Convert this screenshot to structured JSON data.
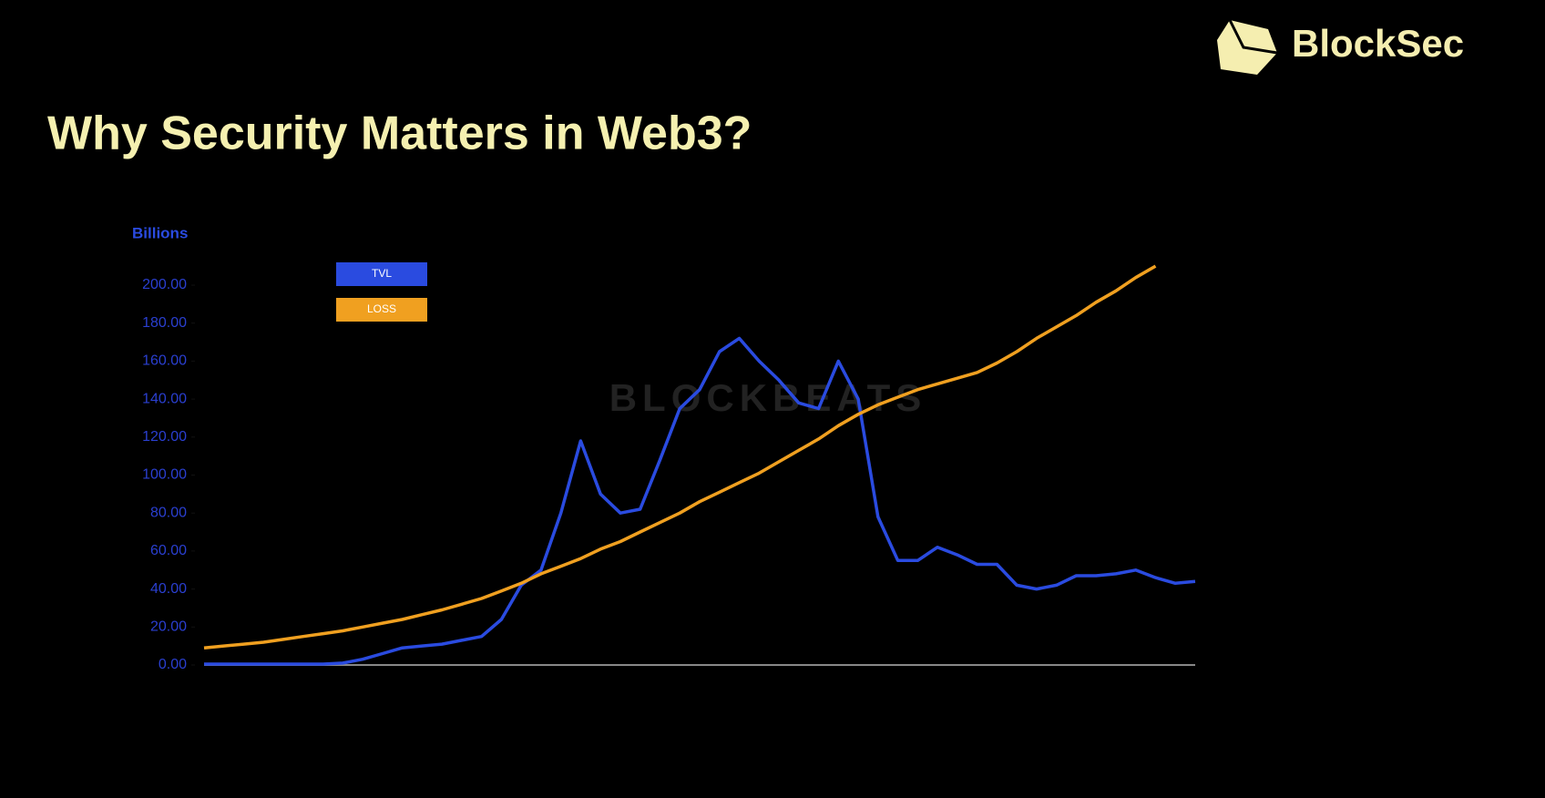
{
  "brand": "BlockSec",
  "chart_data": {
    "type": "line",
    "title": "Why Security Matters in Web3?",
    "y_label": "Billions",
    "watermark": "BLOCKBEATS",
    "categories": [
      null,
      null,
      null,
      null,
      null,
      null,
      null,
      null,
      null,
      null,
      null,
      null,
      null,
      null,
      null,
      null,
      null,
      null,
      null,
      null,
      null,
      null,
      null,
      null,
      null,
      null,
      null,
      null,
      null,
      null,
      null,
      null,
      null,
      null,
      null,
      null,
      null,
      null,
      null,
      null,
      null,
      null,
      null,
      null,
      null,
      null,
      null,
      null,
      null,
      null,
      null
    ],
    "series": [
      {
        "name": "TVL",
        "color": "#2a4be0",
        "values": [
          0.5,
          0.5,
          0.5,
          0.5,
          0.5,
          0.5,
          0.5,
          1,
          3,
          6,
          9,
          10,
          11,
          13,
          15,
          24,
          42,
          50,
          80,
          118,
          90,
          80,
          82,
          108,
          135,
          145,
          165,
          172,
          160,
          150,
          138,
          135,
          160,
          140,
          78,
          55,
          55,
          62,
          58,
          53,
          53,
          42,
          40,
          42,
          47,
          47,
          48,
          50,
          46,
          43,
          44
        ]
      },
      {
        "name": "LOSS",
        "color": "#f0a020",
        "values": [
          9,
          10,
          11,
          12,
          13.5,
          15,
          16.5,
          18,
          20,
          22,
          24,
          26.5,
          29,
          32,
          35,
          39,
          43,
          48,
          52,
          56,
          61,
          65,
          70,
          75,
          80,
          86,
          91,
          96,
          101,
          107,
          113,
          119,
          126,
          132,
          137,
          141,
          145,
          148,
          151,
          154,
          159,
          165,
          172,
          178,
          184,
          191,
          197,
          204,
          210,
          null,
          null
        ]
      }
    ],
    "ylim": [
      0,
      200
    ],
    "yticks": [
      {
        "value": 0,
        "label": "0.00"
      },
      {
        "value": 20,
        "label": "20.00"
      },
      {
        "value": 40,
        "label": "40.00"
      },
      {
        "value": 60,
        "label": "60.00"
      },
      {
        "value": 80,
        "label": "80.00"
      },
      {
        "value": 100,
        "label": "100.00"
      },
      {
        "value": 120,
        "label": "120.00"
      },
      {
        "value": 140,
        "label": "140.00"
      },
      {
        "value": 160,
        "label": "160.00"
      },
      {
        "value": 180,
        "label": "180.00"
      },
      {
        "value": 200,
        "label": "200.00"
      }
    ],
    "grid": false
  }
}
